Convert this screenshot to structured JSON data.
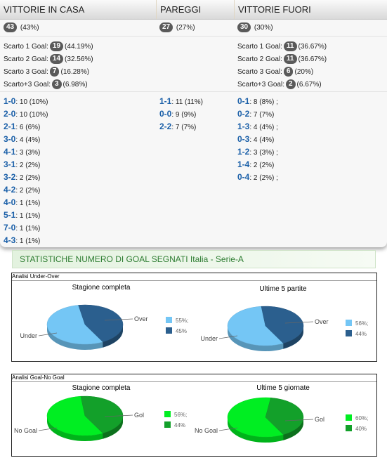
{
  "header": {
    "col1": "VITTORIE IN CASA",
    "col2": "PAREGGI",
    "col3": "VITTORIE FUORI"
  },
  "totals": {
    "home": {
      "count": "43",
      "pct": "(43%)"
    },
    "draw": {
      "count": "27",
      "pct": "(27%)"
    },
    "away": {
      "count": "30",
      "pct": "(30%)"
    }
  },
  "margins": {
    "home": [
      {
        "label": "Scarto 1 Goal:",
        "count": "19",
        "pct": "(44.19%)"
      },
      {
        "label": "Scarto 2 Goal:",
        "count": "14",
        "pct": "(32.56%)"
      },
      {
        "label": "Scarto 3 Goal:",
        "count": "7",
        "pct": "(16.28%)"
      },
      {
        "label": "Scarto+3 Goal:",
        "count": "3",
        "pct": "(6.98%)"
      }
    ],
    "away": [
      {
        "label": "Scarto 1 Goal:",
        "count": "11",
        "pct": "(36.67%)"
      },
      {
        "label": "Scarto 2 Goal:",
        "count": "11",
        "pct": "(36.67%)"
      },
      {
        "label": "Scarto 3 Goal:",
        "count": "6",
        "pct": "(20%)"
      },
      {
        "label": "Scarto+3 Goal:",
        "count": "2",
        "pct": "(6.67%)"
      }
    ]
  },
  "scores": {
    "home": [
      {
        "score": "1-0",
        "text": ": 10 (10%)"
      },
      {
        "score": "2-0",
        "text": ": 10 (10%)"
      },
      {
        "score": "2-1",
        "text": ": 6 (6%)"
      },
      {
        "score": "3-0",
        "text": ": 4 (4%)"
      },
      {
        "score": "4-1",
        "text": ": 3 (3%)"
      },
      {
        "score": "3-1",
        "text": ": 2 (2%)"
      },
      {
        "score": "3-2",
        "text": ": 2 (2%)"
      },
      {
        "score": "4-2",
        "text": ": 2 (2%)"
      },
      {
        "score": "4-0",
        "text": ": 1 (1%)"
      },
      {
        "score": "5-1",
        "text": ": 1 (1%)"
      },
      {
        "score": "7-0",
        "text": ": 1 (1%)"
      },
      {
        "score": "4-3",
        "text": ": 1 (1%)"
      }
    ],
    "draw": [
      {
        "score": "1-1",
        "text": ": 11 (11%)"
      },
      {
        "score": "0-0",
        "text": ": 9 (9%)"
      },
      {
        "score": "2-2",
        "text": ": 7 (7%)"
      }
    ],
    "away": [
      {
        "score": "0-1",
        "text": ": 8 (8%) ;"
      },
      {
        "score": "0-2",
        "text": ": 7 (7%)"
      },
      {
        "score": "1-3",
        "text": ": 4 (4%) ;"
      },
      {
        "score": "0-3",
        "text": ": 4 (4%)"
      },
      {
        "score": "1-2",
        "text": ": 3 (3%) ;"
      },
      {
        "score": "1-4",
        "text": ": 2 (2%)"
      },
      {
        "score": "0-4",
        "text": ": 2 (2%) ;"
      }
    ]
  },
  "stats": {
    "title": "STATISTICHE NUMERO DI GOAL SEGNATI Italia - Serie-A"
  },
  "colors": {
    "under": "#74c6f5",
    "over": "#2b5f8e",
    "nogoal": "#00ee22",
    "gol": "#13a02a"
  },
  "chart_data": [
    {
      "type": "pie",
      "panel": "Analisi Under-Over",
      "title": "Stagione completa",
      "series": [
        {
          "name": "Under",
          "value": 55,
          "legend": "55%;"
        },
        {
          "name": "Over",
          "value": 45,
          "legend": "45%"
        }
      ]
    },
    {
      "type": "pie",
      "panel": "Analisi Under-Over",
      "title": "Ultime 5 partite",
      "series": [
        {
          "name": "Under",
          "value": 56,
          "legend": "56%;"
        },
        {
          "name": "Over",
          "value": 44,
          "legend": "44%"
        }
      ]
    },
    {
      "type": "pie",
      "panel": "Analisi Goal-No Goal",
      "title": "Stagione completa",
      "series": [
        {
          "name": "No Goal",
          "value": 56,
          "legend": "56%;"
        },
        {
          "name": "Gol",
          "value": 44,
          "legend": "44%"
        }
      ]
    },
    {
      "type": "pie",
      "panel": "Analisi Goal-No Goal",
      "title": "Ultime 5 giornate",
      "series": [
        {
          "name": "No Goal",
          "value": 60,
          "legend": "60%;"
        },
        {
          "name": "Gol",
          "value": 40,
          "legend": "40%"
        }
      ]
    }
  ]
}
